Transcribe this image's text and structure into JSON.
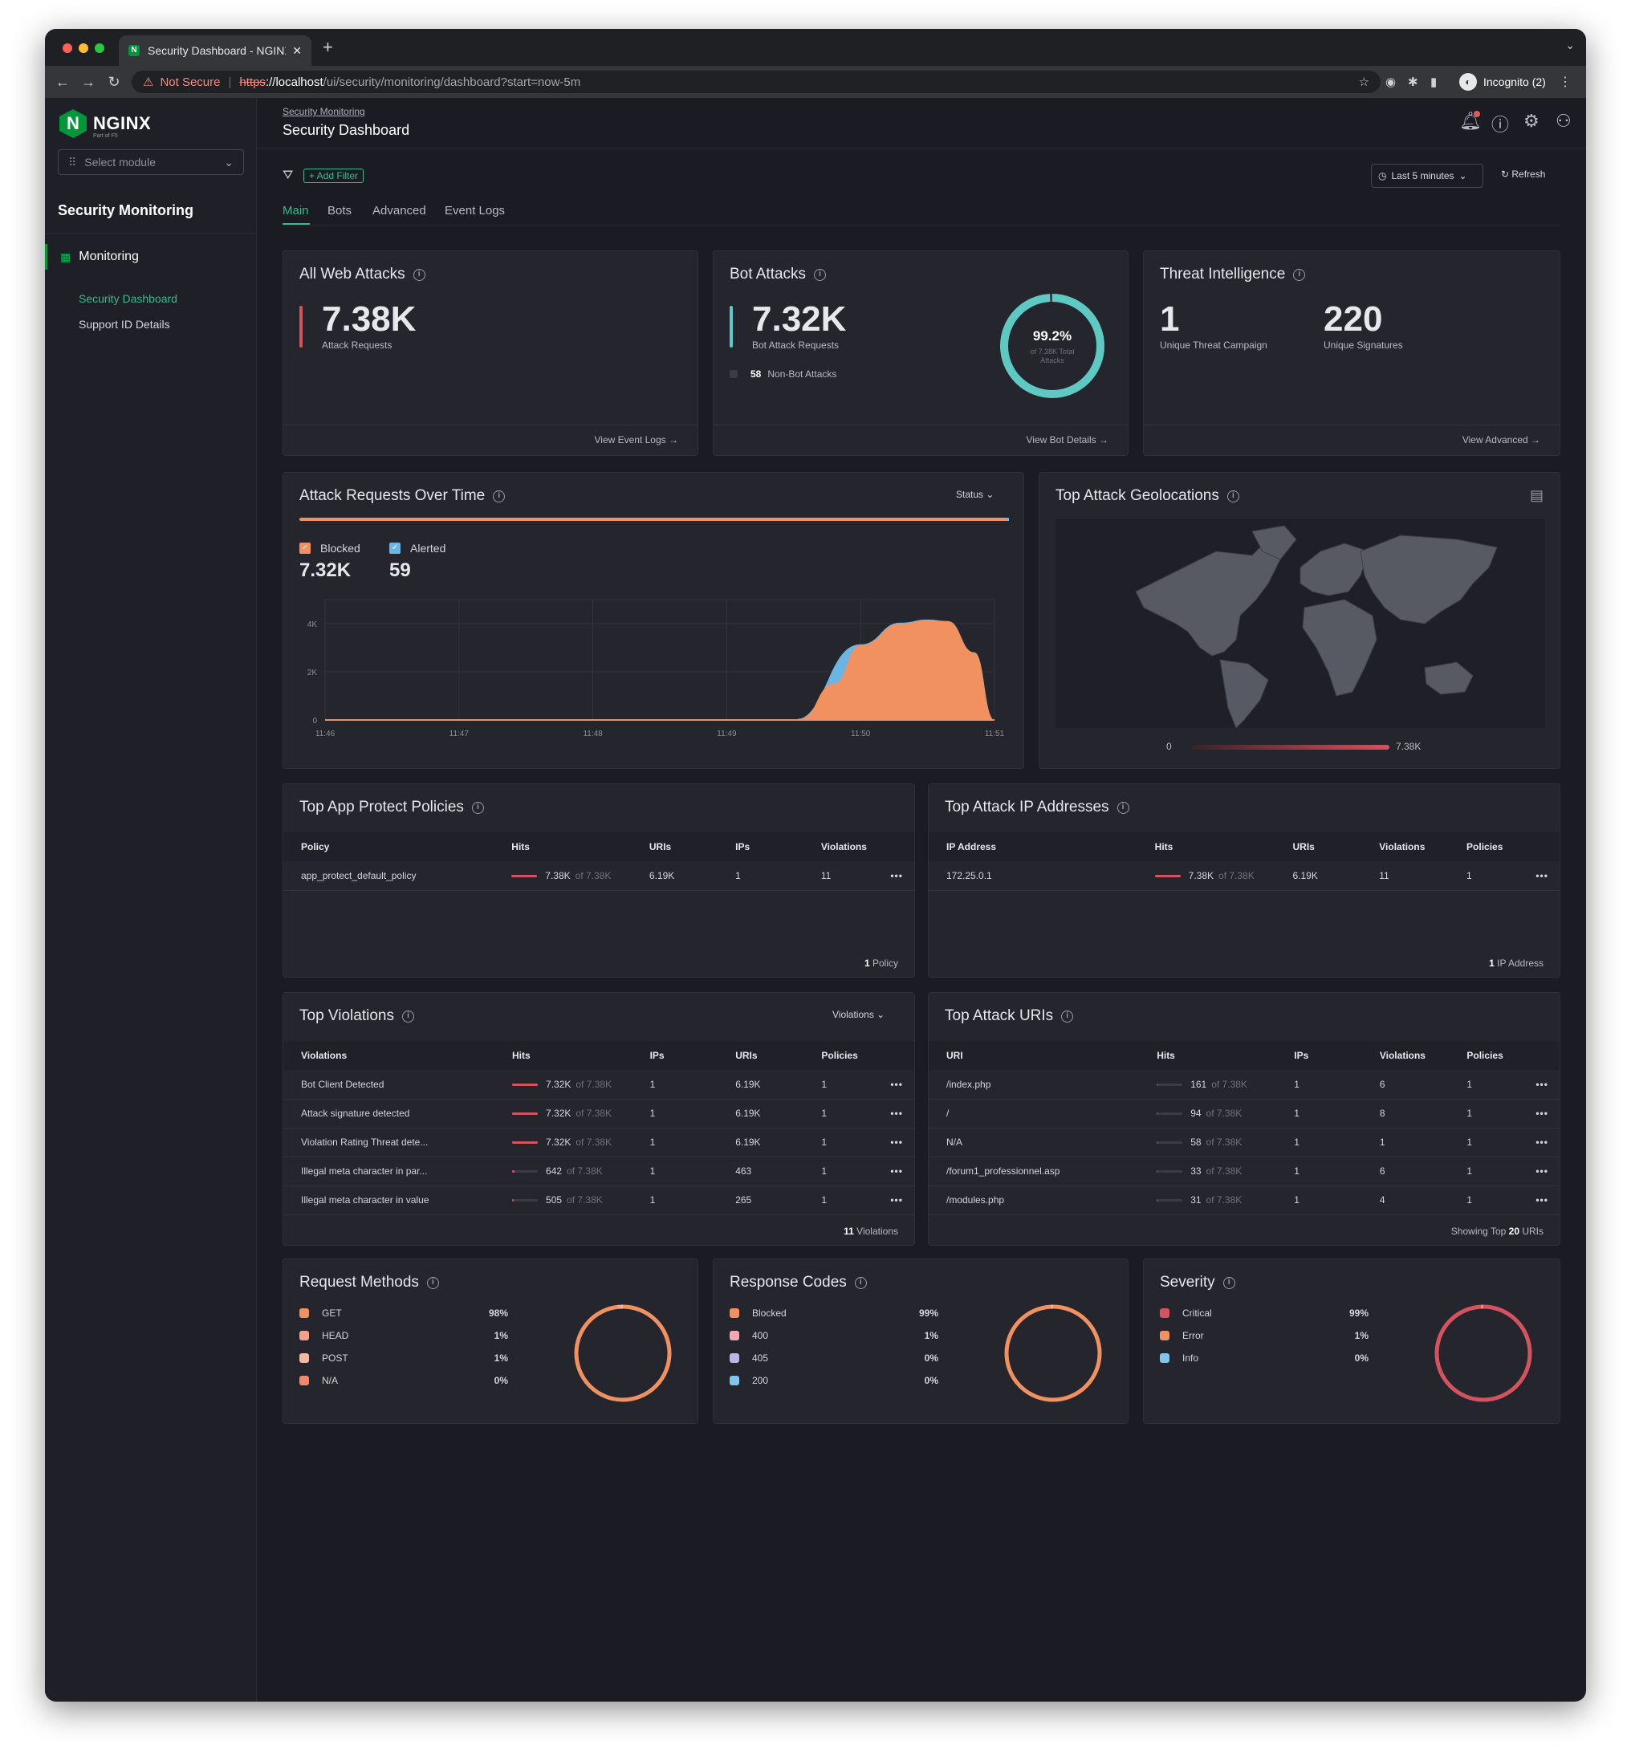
{
  "browser": {
    "tab_title": "Security Dashboard - NGINX A",
    "new_tab": "+",
    "not_secure": "Not Secure",
    "url_scheme": "https",
    "url_host": "://localhost",
    "url_path": "/ui/security/monitoring/dashboard?start=now-5m",
    "incognito": "Incognito (2)"
  },
  "sidebar": {
    "brand": "NGINX",
    "brand_sub": "Part of F5",
    "module_placeholder": "Select module",
    "section_title": "Security Monitoring",
    "group": "Monitoring",
    "items": [
      {
        "label": "Security Dashboard",
        "active": true
      },
      {
        "label": "Support ID Details",
        "active": false
      }
    ]
  },
  "header": {
    "breadcrumb": "Security Monitoring",
    "title": "Security Dashboard",
    "add_filter": "+ Add Filter",
    "time_range": "Last 5 minutes",
    "refresh": "Refresh",
    "tabs": [
      "Main",
      "Bots",
      "Advanced",
      "Event Logs"
    ]
  },
  "web_attacks": {
    "title": "All Web Attacks",
    "value": "7.38K",
    "sub": "Attack Requests",
    "link": "View Event Logs →"
  },
  "bot_attacks": {
    "title": "Bot Attacks",
    "value": "7.32K",
    "sub": "Bot Attack Requests",
    "nonbot_value": "58",
    "nonbot_label": "Non-Bot Attacks",
    "donut_pct": "99.2%",
    "donut_sub": "of 7.38K Total Attacks",
    "donut_fraction": 0.992,
    "link": "View Bot Details →"
  },
  "threat": {
    "title": "Threat Intelligence",
    "campaign_value": "1",
    "campaign_label": "Unique Threat Campaign",
    "sig_value": "220",
    "sig_label": "Unique Signatures",
    "link": "View Advanced →"
  },
  "over_time": {
    "title": "Attack Requests Over Time",
    "dropdown": "Status",
    "blocked_label": "Blocked",
    "blocked_value": "7.32K",
    "alerted_label": "Alerted",
    "alerted_value": "59"
  },
  "chart_data": {
    "type": "area",
    "title": "Attack Requests Over Time",
    "x": [
      "11:46",
      "11:47",
      "11:48",
      "11:49",
      "11:50",
      "11:51"
    ],
    "y_ticks": [
      "0",
      "2K",
      "4K"
    ],
    "ylim": [
      0,
      5000
    ],
    "series": [
      {
        "name": "Blocked",
        "color": "#f0915f",
        "points": [
          [
            0,
            0
          ],
          [
            0.5,
            0
          ],
          [
            1,
            0
          ],
          [
            1.5,
            0
          ],
          [
            2,
            0
          ],
          [
            2.5,
            0
          ],
          [
            3,
            0
          ],
          [
            3.5,
            0
          ],
          [
            3.55,
            60
          ],
          [
            3.8,
            1500
          ],
          [
            4,
            3100
          ],
          [
            4.3,
            4000
          ],
          [
            4.5,
            4150
          ],
          [
            4.65,
            4100
          ],
          [
            4.85,
            2800
          ],
          [
            5,
            0
          ]
        ]
      },
      {
        "name": "Alerted",
        "color": "#6cb4e4",
        "points": [
          [
            0,
            0
          ],
          [
            3.5,
            0
          ],
          [
            4,
            3140
          ],
          [
            4.3,
            4040
          ],
          [
            4.5,
            4170
          ],
          [
            4.65,
            4110
          ],
          [
            4.85,
            2810
          ],
          [
            5,
            0
          ]
        ]
      }
    ]
  },
  "geo": {
    "title": "Top Attack Geolocations",
    "scale_min": "0",
    "scale_max": "7.38K"
  },
  "policies": {
    "title": "Top App Protect Policies",
    "columns": [
      "Policy",
      "Hits",
      "URIs",
      "IPs",
      "Violations"
    ],
    "rows": [
      {
        "name": "app_protect_default_policy",
        "hits": "7.38K",
        "of": "of 7.38K",
        "frac": 1.0,
        "c3": "6.19K",
        "c4": "1",
        "c5": "11"
      }
    ],
    "footer_num": "1",
    "footer_label": " Policy"
  },
  "ips": {
    "title": "Top Attack IP Addresses",
    "columns": [
      "IP Address",
      "Hits",
      "URIs",
      "Violations",
      "Policies"
    ],
    "rows": [
      {
        "name": "172.25.0.1",
        "hits": "7.38K",
        "of": "of 7.38K",
        "frac": 1.0,
        "c3": "6.19K",
        "c4": "11",
        "c5": "1"
      }
    ],
    "footer_num": "1",
    "footer_label": " IP Address"
  },
  "violations": {
    "title": "Top Violations",
    "dropdown": "Violations",
    "columns": [
      "Violations",
      "Hits",
      "IPs",
      "URIs",
      "Policies"
    ],
    "rows": [
      {
        "name": "Bot Client Detected",
        "hits": "7.32K",
        "of": "of 7.38K",
        "frac": 0.99,
        "c3": "1",
        "c4": "6.19K",
        "c5": "1"
      },
      {
        "name": "Attack signature detected",
        "hits": "7.32K",
        "of": "of 7.38K",
        "frac": 0.99,
        "c3": "1",
        "c4": "6.19K",
        "c5": "1"
      },
      {
        "name": "Violation Rating Threat dete...",
        "hits": "7.32K",
        "of": "of 7.38K",
        "frac": 0.99,
        "c3": "1",
        "c4": "6.19K",
        "c5": "1"
      },
      {
        "name": "Illegal meta character in par...",
        "hits": "642",
        "of": "of 7.38K",
        "frac": 0.09,
        "c3": "1",
        "c4": "463",
        "c5": "1"
      },
      {
        "name": "Illegal meta character in value",
        "hits": "505",
        "of": "of 7.38K",
        "frac": 0.07,
        "c3": "1",
        "c4": "265",
        "c5": "1"
      }
    ],
    "footer_num": "11",
    "footer_label": " Violations"
  },
  "uris": {
    "title": "Top Attack URIs",
    "columns": [
      "URI",
      "Hits",
      "IPs",
      "Violations",
      "Policies"
    ],
    "rows": [
      {
        "name": "/index.php",
        "hits": "161",
        "of": "of 7.38K",
        "frac": 0.02,
        "c3": "1",
        "c4": "6",
        "c5": "1"
      },
      {
        "name": "/",
        "hits": "94",
        "of": "of 7.38K",
        "frac": 0.013,
        "c3": "1",
        "c4": "8",
        "c5": "1"
      },
      {
        "name": "N/A",
        "hits": "58",
        "of": "of 7.38K",
        "frac": 0.008,
        "c3": "1",
        "c4": "1",
        "c5": "1"
      },
      {
        "name": "/forum1_professionnel.asp",
        "hits": "33",
        "of": "of 7.38K",
        "frac": 0.004,
        "c3": "1",
        "c4": "6",
        "c5": "1"
      },
      {
        "name": "/modules.php",
        "hits": "31",
        "of": "of 7.38K",
        "frac": 0.004,
        "c3": "1",
        "c4": "4",
        "c5": "1"
      }
    ],
    "footer_pre": "Showing Top ",
    "footer_num": "20",
    "footer_label": " URIs"
  },
  "methods": {
    "title": "Request Methods",
    "items": [
      {
        "label": "GET",
        "pct": "98%",
        "value": 0.98,
        "color": "#f0915f"
      },
      {
        "label": "HEAD",
        "pct": "1%",
        "value": 0.01,
        "color": "#f4a28a"
      },
      {
        "label": "POST",
        "pct": "1%",
        "value": 0.01,
        "color": "#f7b79e"
      },
      {
        "label": "N/A",
        "pct": "0%",
        "value": 0.0,
        "color": "#f08a6a"
      }
    ]
  },
  "codes": {
    "title": "Response Codes",
    "items": [
      {
        "label": "Blocked",
        "pct": "99%",
        "value": 0.99,
        "color": "#f0915f"
      },
      {
        "label": "400",
        "pct": "1%",
        "value": 0.01,
        "color": "#f3a9b0"
      },
      {
        "label": "405",
        "pct": "0%",
        "value": 0.0,
        "color": "#b7b8e6"
      },
      {
        "label": "200",
        "pct": "0%",
        "value": 0.0,
        "color": "#7fc6ef"
      }
    ]
  },
  "severity": {
    "title": "Severity",
    "items": [
      {
        "label": "Critical",
        "pct": "99%",
        "value": 0.99,
        "color": "#d4535e"
      },
      {
        "label": "Error",
        "pct": "1%",
        "value": 0.01,
        "color": "#f0915f"
      },
      {
        "label": "Info",
        "pct": "0%",
        "value": 0.0,
        "color": "#7fc6ef"
      }
    ]
  }
}
